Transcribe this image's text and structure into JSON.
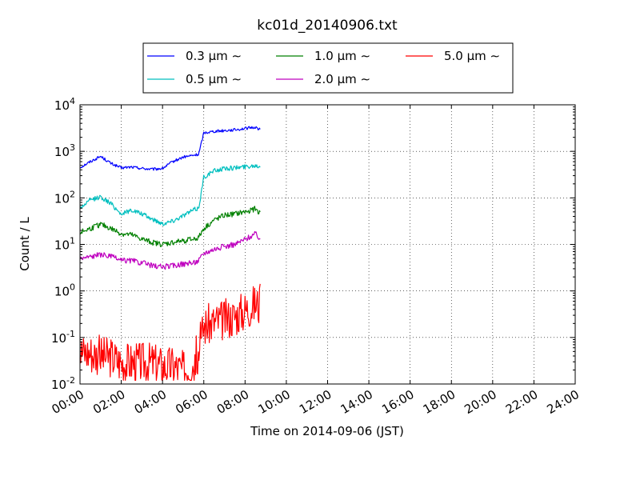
{
  "chart_data": {
    "type": "line",
    "title": "kc01d_20140906.txt",
    "xlabel": "Time on 2014-09-06 (JST)",
    "ylabel": "Count / L",
    "x_unit": "time of day (JST)",
    "xlim": [
      "00:00",
      "24:00"
    ],
    "ylim": [
      0.01,
      10000
    ],
    "yscale": "log",
    "grid": true,
    "legend_position": "top-center, above plot",
    "x_ticks": [
      "00:00",
      "02:00",
      "04:00",
      "06:00",
      "08:00",
      "10:00",
      "12:00",
      "14:00",
      "16:00",
      "18:00",
      "20:00",
      "22:00",
      "24:00"
    ],
    "y_ticks": [
      {
        "value": 0.01,
        "base": "10",
        "exp": "-2"
      },
      {
        "value": 0.1,
        "base": "10",
        "exp": "-1"
      },
      {
        "value": 1,
        "base": "10",
        "exp": "0"
      },
      {
        "value": 10,
        "base": "10",
        "exp": "1"
      },
      {
        "value": 100,
        "base": "10",
        "exp": "2"
      },
      {
        "value": 1000,
        "base": "10",
        "exp": "3"
      },
      {
        "value": 10000,
        "base": "10",
        "exp": "4"
      }
    ],
    "x": [
      "00:00",
      "00:30",
      "01:00",
      "01:30",
      "02:00",
      "02:30",
      "03:00",
      "03:30",
      "04:00",
      "04:30",
      "05:00",
      "05:30",
      "05:45",
      "06:00",
      "06:30",
      "07:00",
      "07:30",
      "08:00",
      "08:30",
      "08:45"
    ],
    "series": [
      {
        "name": "0.3 μm ∼",
        "color": "#0000ff",
        "jitter": 0.03,
        "values": [
          450,
          600,
          780,
          550,
          440,
          460,
          430,
          410,
          430,
          600,
          750,
          820,
          860,
          2500,
          2700,
          2800,
          2900,
          3100,
          3300,
          2900
        ]
      },
      {
        "name": "0.5 μm ∼",
        "color": "#00bfbf",
        "jitter": 0.05,
        "values": [
          60,
          90,
          105,
          75,
          45,
          55,
          45,
          35,
          28,
          32,
          42,
          55,
          60,
          280,
          380,
          430,
          440,
          470,
          500,
          480
        ]
      },
      {
        "name": "1.0 μm ∼",
        "color": "#008000",
        "jitter": 0.06,
        "values": [
          18,
          22,
          27,
          22,
          17,
          16,
          13,
          11,
          10,
          11,
          12,
          13,
          14,
          22,
          33,
          42,
          45,
          50,
          58,
          45
        ]
      },
      {
        "name": "2.0 μm ∼",
        "color": "#bf00bf",
        "jitter": 0.06,
        "values": [
          5,
          5.5,
          6,
          5.5,
          4.5,
          4.5,
          4,
          3.5,
          3.3,
          3.5,
          3.8,
          4,
          4.5,
          6.5,
          8,
          9,
          10,
          13,
          17,
          13
        ]
      },
      {
        "name": "5.0 μm ∼",
        "color": "#ff0000",
        "jitter": 0.45,
        "noise_min": 0.012,
        "values": [
          0.05,
          0.05,
          0.04,
          0.04,
          0.03,
          0.03,
          0.03,
          0.03,
          0.025,
          0.025,
          0.02,
          0.03,
          0.05,
          0.18,
          0.22,
          0.25,
          0.3,
          0.4,
          0.55,
          0.5
        ]
      }
    ]
  }
}
